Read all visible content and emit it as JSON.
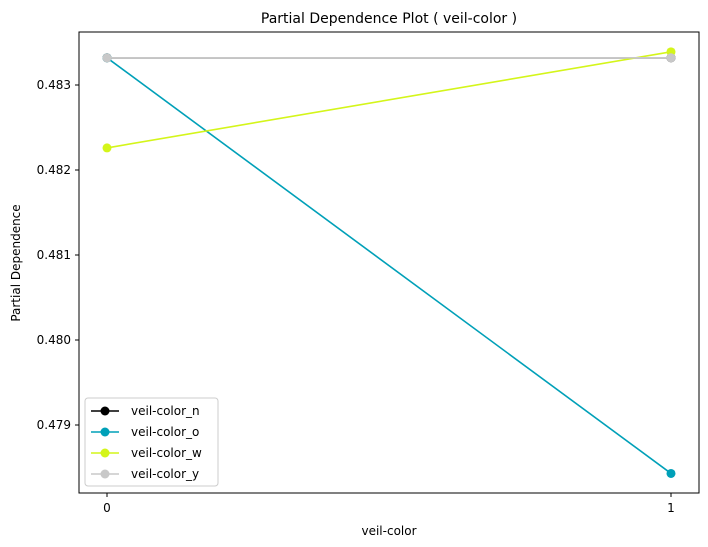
{
  "chart_data": {
    "type": "line",
    "title": "Partial Dependence Plot ( veil-color )",
    "xlabel": "veil-color",
    "ylabel": "Partial Dependence",
    "x": [
      0,
      1
    ],
    "x_ticks": [
      "0",
      "1"
    ],
    "y_ticks": [
      "0.479",
      "0.480",
      "0.481",
      "0.482",
      "0.483"
    ],
    "ylim": [
      0.47822,
      0.48365
    ],
    "grid": false,
    "legend_position": "lower-left",
    "series": [
      {
        "name": "veil-color_n",
        "color": "#000000",
        "values": [
          0.48332,
          0.48332
        ]
      },
      {
        "name": "veil-color_o",
        "color": "#00a0b8",
        "values": [
          0.48332,
          0.47843
        ]
      },
      {
        "name": "veil-color_w",
        "color": "#d4f51a",
        "values": [
          0.48226,
          0.48339
        ]
      },
      {
        "name": "veil-color_y",
        "color": "#c8c8c8",
        "values": [
          0.48332,
          0.48332
        ]
      }
    ]
  }
}
